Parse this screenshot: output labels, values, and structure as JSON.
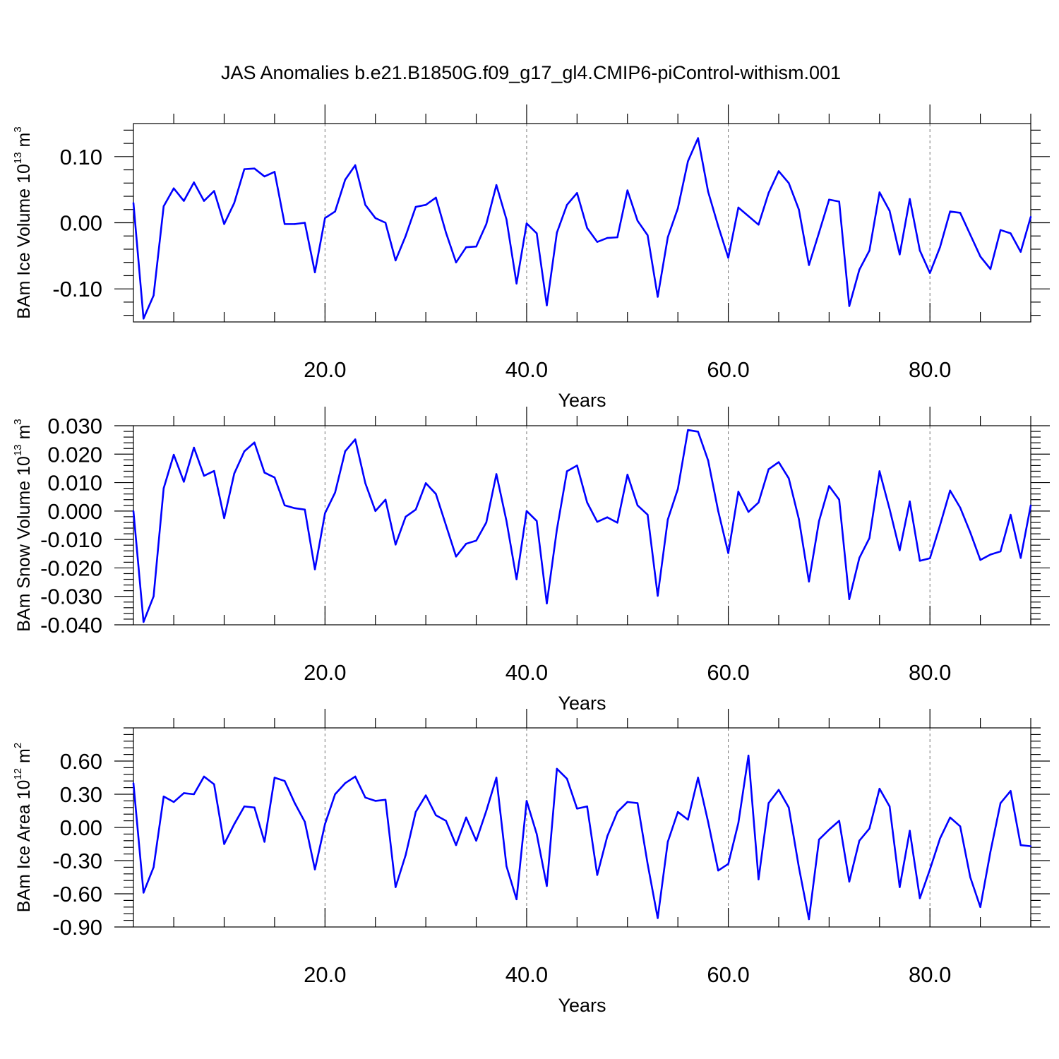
{
  "title": "JAS Anomalies b.e21.B1850G.f09_g17_gl4.CMIP6-piControl-withism.001",
  "colors": {
    "series": "#0000ff"
  },
  "chart_data": [
    {
      "type": "line",
      "title": "JAS Anomalies b.e21.B1850G.f09_g17_gl4.CMIP6-piControl-withism.001",
      "xlabel": "Years",
      "ylabel": {
        "main": "BAm Ice Volume 10",
        "exponent": "13",
        "unit": " m",
        "unit_exponent": "3"
      },
      "xlim": [
        1,
        90
      ],
      "ylim": [
        -0.15,
        0.15
      ],
      "xticks": [
        20,
        40,
        60,
        80
      ],
      "xtick_labels": [
        "20.0",
        "40.0",
        "60.0",
        "80.0"
      ],
      "yticks": [
        -0.1,
        0.0,
        0.1
      ],
      "ytick_labels": [
        "-0.10",
        "0.00",
        "0.10"
      ],
      "grid": "vertical dashed at major x ticks",
      "x": [
        1,
        2,
        3,
        4,
        5,
        6,
        7,
        8,
        9,
        10,
        11,
        12,
        13,
        14,
        15,
        16,
        17,
        18,
        19,
        20,
        21,
        22,
        23,
        24,
        25,
        26,
        27,
        28,
        29,
        30,
        31,
        32,
        33,
        34,
        35,
        36,
        37,
        38,
        39,
        40,
        41,
        42,
        43,
        44,
        45,
        46,
        47,
        48,
        49,
        50,
        51,
        52,
        53,
        54,
        55,
        56,
        57,
        58,
        59,
        60,
        61,
        62,
        63,
        64,
        65,
        66,
        67,
        68,
        69,
        70,
        71,
        72,
        73,
        74,
        75,
        76,
        77,
        78,
        79,
        80,
        81,
        82,
        83,
        84,
        85,
        86,
        87,
        88,
        89,
        90
      ],
      "series": [
        {
          "values": [
            0.03,
            -0.145,
            -0.11,
            0.025,
            0.052,
            0.033,
            0.061,
            0.033,
            0.048,
            -0.002,
            0.03,
            0.081,
            0.082,
            0.07,
            0.077,
            -0.002,
            -0.002,
            0.0,
            -0.075,
            0.007,
            0.017,
            0.065,
            0.087,
            0.027,
            0.007,
            0.0,
            -0.057,
            -0.02,
            0.024,
            0.027,
            0.038,
            -0.015,
            -0.06,
            -0.037,
            -0.036,
            -0.002,
            0.057,
            0.005,
            -0.092,
            -0.001,
            -0.016,
            -0.125,
            -0.015,
            0.027,
            0.045,
            -0.008,
            -0.029,
            -0.023,
            -0.022,
            0.049,
            0.003,
            -0.019,
            -0.112,
            -0.022,
            0.022,
            0.093,
            0.128,
            0.047,
            -0.005,
            -0.053,
            0.023,
            0.01,
            -0.003,
            0.045,
            0.078,
            0.06,
            0.02,
            -0.064,
            -0.015,
            0.035,
            0.032,
            -0.126,
            -0.071,
            -0.042,
            0.046,
            0.018,
            -0.048,
            0.036,
            -0.042,
            -0.076,
            -0.037,
            0.017,
            0.015,
            -0.018,
            -0.051,
            -0.07,
            -0.011,
            -0.016,
            -0.044,
            0.009
          ]
        }
      ]
    },
    {
      "type": "line",
      "title": "",
      "xlabel": "Years",
      "ylabel": {
        "main": "BAm Snow Volume 10",
        "exponent": "13",
        "unit": " m",
        "unit_exponent": "3"
      },
      "xlim": [
        1,
        90
      ],
      "ylim": [
        -0.04,
        0.03
      ],
      "xticks": [
        20,
        40,
        60,
        80
      ],
      "xtick_labels": [
        "20.0",
        "40.0",
        "60.0",
        "80.0"
      ],
      "yticks": [
        -0.04,
        -0.03,
        -0.02,
        -0.01,
        0.0,
        0.01,
        0.02,
        0.03
      ],
      "ytick_labels": [
        "-0.040",
        "-0.030",
        "-0.020",
        "-0.010",
        "0.000",
        "0.010",
        "0.020",
        "0.030"
      ],
      "grid": "vertical dashed at major x ticks",
      "x": [
        1,
        2,
        3,
        4,
        5,
        6,
        7,
        8,
        9,
        10,
        11,
        12,
        13,
        14,
        15,
        16,
        17,
        18,
        19,
        20,
        21,
        22,
        23,
        24,
        25,
        26,
        27,
        28,
        29,
        30,
        31,
        32,
        33,
        34,
        35,
        36,
        37,
        38,
        39,
        40,
        41,
        42,
        43,
        44,
        45,
        46,
        47,
        48,
        49,
        50,
        51,
        52,
        53,
        54,
        55,
        56,
        57,
        58,
        59,
        60,
        61,
        62,
        63,
        64,
        65,
        66,
        67,
        68,
        69,
        70,
        71,
        72,
        73,
        74,
        75,
        76,
        77,
        78,
        79,
        80,
        81,
        82,
        83,
        84,
        85,
        86,
        87,
        88,
        89,
        90
      ],
      "series": [
        {
          "values": [
            0.0,
            -0.039,
            -0.03,
            0.008,
            0.0198,
            0.0103,
            0.0223,
            0.0124,
            0.0141,
            -0.0025,
            0.0132,
            0.021,
            0.0241,
            0.0135,
            0.0118,
            0.002,
            0.001,
            0.0005,
            -0.0205,
            -0.0008,
            0.0065,
            0.021,
            0.0252,
            0.0098,
            0.0,
            0.004,
            -0.0118,
            -0.002,
            0.0005,
            0.0098,
            0.006,
            -0.005,
            -0.016,
            -0.0115,
            -0.0104,
            -0.004,
            0.013,
            -0.0035,
            -0.024,
            0.0,
            -0.0035,
            -0.0325,
            -0.0065,
            0.014,
            0.016,
            0.003,
            -0.0038,
            -0.0022,
            -0.0041,
            0.0128,
            0.002,
            -0.0013,
            -0.0298,
            -0.003,
            0.0078,
            0.0285,
            0.0279,
            0.0178,
            0.0,
            -0.0148,
            0.0068,
            -0.0003,
            0.003,
            0.0147,
            0.0172,
            0.0115,
            -0.0028,
            -0.0248,
            -0.0035,
            0.0088,
            0.004,
            -0.031,
            -0.0165,
            -0.0095,
            0.014,
            0.0007,
            -0.0138,
            0.0034,
            -0.0175,
            -0.0166,
            -0.005,
            0.0072,
            0.0012,
            -0.0075,
            -0.0172,
            -0.0153,
            -0.0142,
            -0.0013,
            -0.0165,
            0.002
          ]
        }
      ]
    },
    {
      "type": "line",
      "title": "",
      "xlabel": "Years",
      "ylabel": {
        "main": "BAm Ice Area 10",
        "exponent": "12",
        "unit": " m",
        "unit_exponent": "2"
      },
      "xlim": [
        1,
        90
      ],
      "ylim": [
        -0.9,
        0.9
      ],
      "xticks": [
        20,
        40,
        60,
        80
      ],
      "xtick_labels": [
        "20.0",
        "40.0",
        "60.0",
        "80.0"
      ],
      "yticks": [
        -0.9,
        -0.6,
        -0.3,
        0.0,
        0.3,
        0.6
      ],
      "ytick_labels": [
        "-0.90",
        "-0.60",
        "-0.30",
        "0.00",
        "0.30",
        "0.60"
      ],
      "grid": "vertical dashed at major x ticks",
      "x": [
        1,
        2,
        3,
        4,
        5,
        6,
        7,
        8,
        9,
        10,
        11,
        12,
        13,
        14,
        15,
        16,
        17,
        18,
        19,
        20,
        21,
        22,
        23,
        24,
        25,
        26,
        27,
        28,
        29,
        30,
        31,
        32,
        33,
        34,
        35,
        36,
        37,
        38,
        39,
        40,
        41,
        42,
        43,
        44,
        45,
        46,
        47,
        48,
        49,
        50,
        51,
        52,
        53,
        54,
        55,
        56,
        57,
        58,
        59,
        60,
        61,
        62,
        63,
        64,
        65,
        66,
        67,
        68,
        69,
        70,
        71,
        72,
        73,
        74,
        75,
        76,
        77,
        78,
        79,
        80,
        81,
        82,
        83,
        84,
        85,
        86,
        87,
        88,
        89,
        90
      ],
      "series": [
        {
          "values": [
            0.4,
            -0.59,
            -0.36,
            0.28,
            0.23,
            0.31,
            0.3,
            0.46,
            0.39,
            -0.15,
            0.03,
            0.19,
            0.18,
            -0.13,
            0.45,
            0.42,
            0.22,
            0.05,
            -0.38,
            0.03,
            0.3,
            0.4,
            0.46,
            0.27,
            0.24,
            0.25,
            -0.54,
            -0.25,
            0.14,
            0.29,
            0.11,
            0.06,
            -0.16,
            0.09,
            -0.12,
            0.15,
            0.45,
            -0.35,
            -0.65,
            0.24,
            -0.06,
            -0.53,
            0.53,
            0.44,
            0.17,
            0.19,
            -0.43,
            -0.08,
            0.14,
            0.23,
            0.22,
            -0.33,
            -0.82,
            -0.13,
            0.14,
            0.07,
            0.45,
            0.05,
            -0.39,
            -0.33,
            0.04,
            0.65,
            -0.47,
            0.22,
            0.34,
            0.18,
            -0.36,
            -0.83,
            -0.11,
            -0.02,
            0.06,
            -0.49,
            -0.12,
            -0.01,
            0.35,
            0.19,
            -0.54,
            -0.03,
            -0.64,
            -0.38,
            -0.1,
            0.09,
            0.01,
            -0.45,
            -0.72,
            -0.22,
            0.22,
            0.33,
            -0.16,
            -0.17
          ]
        }
      ]
    }
  ]
}
